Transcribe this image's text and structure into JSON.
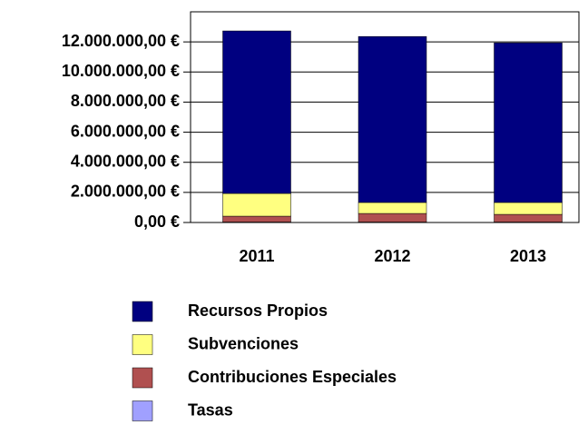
{
  "chart_data": {
    "type": "bar",
    "stacked": true,
    "categories": [
      "2011",
      "2012",
      "2013"
    ],
    "series": [
      {
        "name": "Recursos Propios",
        "color": "#000080",
        "values": [
          10800000,
          11030000,
          10610000
        ]
      },
      {
        "name": "Subvenciones",
        "color": "#ffff80",
        "values": [
          1510000,
          730000,
          790000
        ]
      },
      {
        "name": "Contribuciones Especiales",
        "color": "#b05050",
        "values": [
          390000,
          570000,
          510000
        ]
      },
      {
        "name": "Tasas",
        "color": "#a0a0ff",
        "values": [
          30000,
          30000,
          30000
        ]
      }
    ],
    "ylim": [
      0,
      14000000
    ],
    "yticks": [
      {
        "value": 0,
        "label": "0,00 €"
      },
      {
        "value": 2000000,
        "label": "2.000.000,00 €"
      },
      {
        "value": 4000000,
        "label": "4.000.000,00 €"
      },
      {
        "value": 6000000,
        "label": "6.000.000,00 €"
      },
      {
        "value": 8000000,
        "label": "8.000.000,00 €"
      },
      {
        "value": 10000000,
        "label": "10.000.000,00 €"
      },
      {
        "value": 12000000,
        "label": "12.000.000,00 €"
      }
    ],
    "grid": true
  }
}
